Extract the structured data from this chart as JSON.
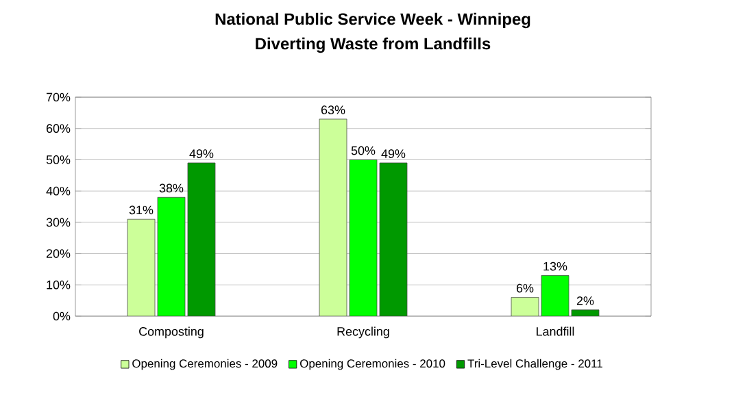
{
  "chart_data": {
    "type": "bar",
    "title": "National Public Service Week - Winnipeg",
    "subtitle": "Diverting Waste from Landfills",
    "categories": [
      "Composting",
      "Recycling",
      "Landfill"
    ],
    "series": [
      {
        "name": "Opening Ceremonies - 2009",
        "color": "#ccff99",
        "values": [
          31,
          63,
          6
        ],
        "value_labels": [
          "31%",
          "63%",
          "6%"
        ]
      },
      {
        "name": "Opening Ceremonies - 2010",
        "color": "#00ff00",
        "values": [
          38,
          50,
          13
        ],
        "value_labels": [
          "38%",
          "50%",
          "13%"
        ]
      },
      {
        "name": "Tri-Level Challenge - 2011",
        "color": "#009900",
        "values": [
          49,
          49,
          2
        ],
        "value_labels": [
          "49%",
          "49%",
          "2%"
        ]
      }
    ],
    "ylim": [
      0,
      70
    ],
    "yticks": [
      {
        "value": 0,
        "label": "0%"
      },
      {
        "value": 10,
        "label": "10%"
      },
      {
        "value": 20,
        "label": "20%"
      },
      {
        "value": 30,
        "label": "30%"
      },
      {
        "value": 40,
        "label": "40%"
      },
      {
        "value": 50,
        "label": "50%"
      },
      {
        "value": 60,
        "label": "60%"
      },
      {
        "value": 70,
        "label": "70%"
      }
    ],
    "grid": "y",
    "legend": "bottom"
  }
}
